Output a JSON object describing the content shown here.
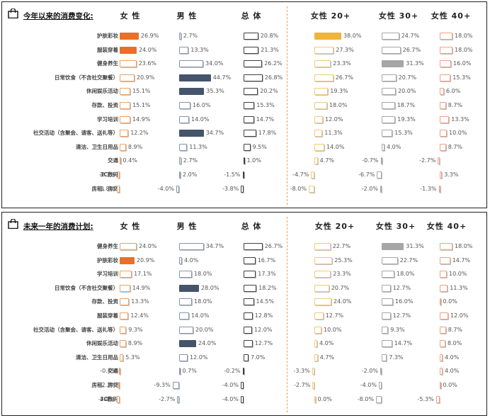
{
  "columns": [
    "女 性",
    "男 性",
    "总 体",
    "女性 20+",
    "女性 30+",
    "女性 40+"
  ],
  "colors": {
    "female_hi": "#e8702a",
    "male_hi": "#44546a",
    "f20_hi": "#f0b43c",
    "f30_hi": "#a6a6a6",
    "female_outline": "#f0a060",
    "male_outline": "#8496b0",
    "total_outline": "#404040",
    "f20_outline": "#f5c875",
    "f30_outline": "#a6a6a6",
    "f40_outline": "#f0a080"
  },
  "panels": [
    {
      "title": "今年以来的消费变化:",
      "chart_data": {
        "type": "bar",
        "title": "今年以来的消费变化:",
        "categories": [
          "护肤彩妆",
          "服装穿着",
          "健身养生",
          "日常饮食（不含社交聚餐）",
          "休闲娱乐活动",
          "存款、投资",
          "学习培训",
          "社交活动（含聚会、请客、送礼等）",
          "清洁、卫生日用品",
          "交通",
          "3C数码",
          "房租、房贷"
        ],
        "series": [
          {
            "name": "女 性",
            "values": [
              26.9,
              24.0,
              23.6,
              20.9,
              15.1,
              15.1,
              14.9,
              12.2,
              8.9,
              0.4,
              -2.7,
              -3.8
            ],
            "highlight": [
              0,
              1
            ]
          },
          {
            "name": "男 性",
            "values": [
              2.7,
              13.3,
              34.0,
              44.7,
              35.3,
              16.0,
              14.0,
              34.7,
              11.3,
              2.7,
              2.0,
              -4.0
            ],
            "highlight": [
              3,
              4,
              7
            ]
          },
          {
            "name": "总 体",
            "values": [
              20.8,
              21.3,
              26.2,
              26.8,
              20.2,
              15.3,
              14.7,
              17.8,
              9.5,
              1.0,
              -1.5,
              -3.8
            ],
            "highlight": []
          },
          {
            "name": "女性 20+",
            "values": [
              38.0,
              27.3,
              23.3,
              26.7,
              19.3,
              18.0,
              12.0,
              11.3,
              14.0,
              4.7,
              -4.7,
              -8.0
            ],
            "highlight": [
              0
            ]
          },
          {
            "name": "女性 30+",
            "values": [
              24.7,
              26.7,
              31.3,
              20.7,
              20.0,
              18.7,
              19.3,
              15.3,
              4.0,
              -0.7,
              -6.7,
              -2.0
            ],
            "highlight": [
              2
            ]
          },
          {
            "name": "女性 40+",
            "values": [
              18.0,
              18.0,
              16.0,
              15.3,
              6.0,
              8.7,
              13.3,
              10.0,
              8.7,
              -2.7,
              3.3,
              -1.3
            ],
            "highlight": []
          }
        ]
      }
    },
    {
      "title": "未来一年的消费计划:",
      "chart_data": {
        "type": "bar",
        "title": "未来一年的消费计划:",
        "categories": [
          "健身养生",
          "护肤彩妆",
          "学习培训",
          "日常饮食（不含社交聚餐）",
          "存款、投资",
          "服装穿着",
          "社交活动（含聚会、请客、送礼等）",
          "休闲娱乐活动",
          "清洁、卫生日用品",
          "交通",
          "房租、房贷",
          "3C数码"
        ],
        "series": [
          {
            "name": "女 性",
            "values": [
              24.0,
              20.9,
              17.1,
              14.9,
              13.3,
              12.4,
              9.3,
              8.9,
              5.3,
              -0.4,
              -2.2,
              -4.4
            ],
            "highlight": [
              1
            ]
          },
          {
            "name": "男 性",
            "values": [
              34.7,
              4.0,
              18.0,
              28.0,
              18.0,
              14.0,
              20.0,
              24.0,
              12.0,
              0.7,
              -9.3,
              -2.7
            ],
            "highlight": [
              3,
              7
            ]
          },
          {
            "name": "总 体",
            "values": [
              26.7,
              16.7,
              17.3,
              18.2,
              14.5,
              12.8,
              12.0,
              12.7,
              7.0,
              -0.2,
              -4.0,
              -4.0
            ],
            "highlight": []
          },
          {
            "name": "女性 20+",
            "values": [
              22.7,
              25.3,
              23.3,
              20.7,
              24.0,
              12.7,
              10.0,
              4.0,
              4.7,
              -3.3,
              -2.7,
              0.0
            ],
            "highlight": []
          },
          {
            "name": "女性 30+",
            "values": [
              31.3,
              22.7,
              18.0,
              12.7,
              16.0,
              12.7,
              9.3,
              14.7,
              7.3,
              -2.0,
              -4.0,
              -8.0
            ],
            "highlight": [
              0
            ]
          },
          {
            "name": "女性 40+",
            "values": [
              18.0,
              14.7,
              10.0,
              11.3,
              0.0,
              12.0,
              8.7,
              8.0,
              4.0,
              4.0,
              0.0,
              -5.3
            ],
            "highlight": []
          }
        ]
      }
    }
  ]
}
